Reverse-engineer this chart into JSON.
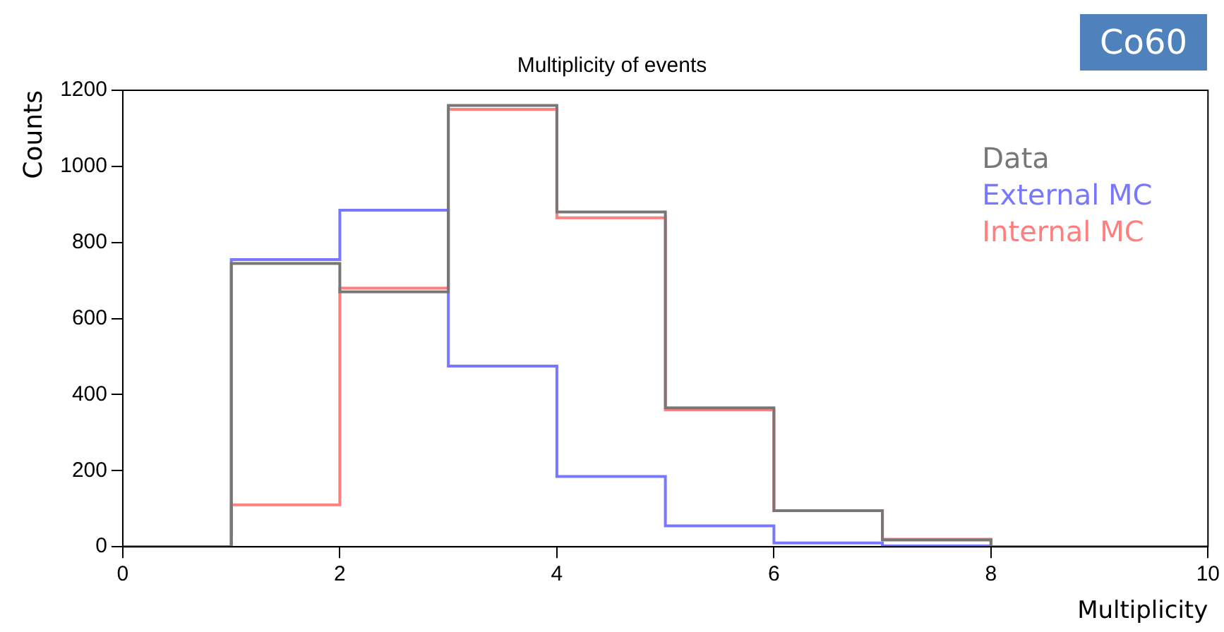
{
  "chart_data": {
    "type": "histogram",
    "title": "Multiplicity of events",
    "xlabel": "Multiplicity",
    "ylabel": "Counts",
    "annotations": [
      "Co60"
    ],
    "bins": [
      0,
      1,
      2,
      3,
      4,
      5,
      6,
      7,
      8,
      9,
      10
    ],
    "series": [
      {
        "name": "Data",
        "color": "#777777",
        "values": [
          0,
          745,
          670,
          1160,
          880,
          365,
          95,
          18,
          0,
          0
        ]
      },
      {
        "name": "External MC",
        "color": "#7777ff",
        "values": [
          0,
          755,
          885,
          475,
          185,
          55,
          10,
          2,
          0,
          0
        ]
      },
      {
        "name": "Internal MC",
        "color": "#ff7f7f",
        "values": [
          0,
          110,
          680,
          1150,
          865,
          360,
          95,
          20,
          0,
          0
        ]
      }
    ],
    "xlim": [
      0,
      10
    ],
    "xticks": [
      0,
      2,
      4,
      6,
      8,
      10
    ],
    "ylim": [
      0,
      1200
    ],
    "yticks": [
      0,
      200,
      400,
      600,
      800,
      1000,
      1200
    ],
    "grid": false,
    "legend": "top right"
  }
}
